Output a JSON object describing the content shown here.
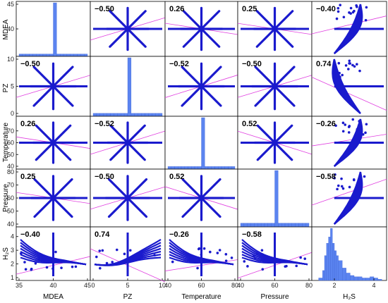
{
  "chart_data": {
    "type": "scatter",
    "title": "",
    "variables": [
      "MDEA",
      "PZ",
      "Temperature",
      "Pressure",
      "H2S"
    ],
    "axis_labels": {
      "x": [
        "MDEA",
        "PZ",
        "Temperature",
        "Pressure",
        "H₂S"
      ],
      "y": [
        "MDEA",
        "PZ",
        "Temperature",
        "Pressure",
        "H₂S"
      ]
    },
    "ranges": {
      "MDEA": [
        35,
        45
      ],
      "PZ": [
        0,
        10
      ],
      "Temperature": [
        40,
        80
      ],
      "Pressure": [
        40,
        80
      ],
      "H2S": [
        1,
        4.5
      ]
    },
    "x_ticks": {
      "MDEA": [
        "35",
        "40",
        "45"
      ],
      "PZ": [
        "0",
        "5",
        "10"
      ],
      "Temperature": [
        "40",
        "60",
        "80"
      ],
      "Pressure": [
        "40",
        "60",
        "80"
      ],
      "H2S": [
        "2",
        "4"
      ]
    },
    "y_ticks": {
      "MDEA": [
        "40",
        "45"
      ],
      "PZ": [
        "0",
        "5",
        "10"
      ],
      "Temperature": [
        "40",
        "50",
        "60",
        "70"
      ],
      "Pressure": [
        "40",
        "50",
        "60",
        "70",
        "80"
      ],
      "H2S": [
        "1",
        "2",
        "3",
        "4"
      ]
    },
    "correlations": [
      [
        null,
        "−0.50",
        "0.26",
        "0.25",
        "−0.40"
      ],
      [
        "−0.50",
        null,
        "−0.52",
        "−0.50",
        "0.74"
      ],
      [
        "0.26",
        "−0.52",
        null,
        "0.52",
        "−0.26"
      ],
      [
        "0.25",
        "−0.50",
        "0.52",
        null,
        "−0.58"
      ],
      [
        "−0.40",
        "0.74",
        "−0.26",
        "−0.58",
        null
      ]
    ],
    "design_centers": {
      "MDEA": 40,
      "PZ": 5,
      "Temperature": 60,
      "Pressure": 60,
      "H2S": 1.9
    },
    "histograms": {
      "MDEA": {
        "bins": [
          35,
          35.5,
          36,
          36.5,
          37,
          37.5,
          38,
          38.5,
          39,
          39.5,
          40,
          40.5,
          41,
          41.5,
          42,
          42.5,
          43,
          43.5,
          44,
          44.5,
          45
        ],
        "counts": [
          2,
          2,
          2,
          2,
          2,
          2,
          2,
          2,
          2,
          2,
          45,
          2,
          2,
          2,
          2,
          2,
          2,
          2,
          2,
          2
        ]
      },
      "PZ": {
        "bins": [
          0,
          0.5,
          1,
          1.5,
          2,
          2.5,
          3,
          3.5,
          4,
          4.5,
          5,
          5.5,
          6,
          6.5,
          7,
          7.5,
          8,
          8.5,
          9,
          9.5,
          10
        ],
        "counts": [
          2,
          2,
          2,
          2,
          2,
          2,
          2,
          2,
          2,
          2,
          40,
          2,
          2,
          2,
          2,
          2,
          2,
          2,
          2,
          2
        ]
      },
      "Temperature": {
        "bins": [
          40,
          42,
          44,
          46,
          48,
          50,
          52,
          54,
          56,
          58,
          60,
          62,
          64,
          66,
          68,
          70,
          72,
          74,
          76,
          78,
          80
        ],
        "counts": [
          2,
          2,
          2,
          2,
          2,
          2,
          2,
          2,
          2,
          2,
          40,
          2,
          2,
          2,
          2,
          2,
          2,
          2,
          2,
          2
        ]
      },
      "Pressure": {
        "bins": [
          40,
          42,
          44,
          46,
          48,
          50,
          52,
          54,
          56,
          58,
          60,
          62,
          64,
          66,
          68,
          70,
          72,
          74,
          76,
          78,
          80
        ],
        "counts": [
          4,
          4,
          4,
          4,
          4,
          4,
          4,
          4,
          4,
          4,
          60,
          4,
          4,
          4,
          4,
          4,
          4,
          4,
          4,
          4
        ]
      },
      "H2S": {
        "bins": [
          1.2,
          1.4,
          1.5,
          1.6,
          1.7,
          1.8,
          1.9,
          2.0,
          2.1,
          2.2,
          2.4,
          2.6,
          2.8,
          3.0,
          3.2,
          3.4,
          3.6,
          3.8,
          4.0,
          4.2,
          4.4
        ],
        "counts": [
          2,
          8,
          20,
          30,
          35,
          42,
          30,
          24,
          20,
          16,
          10,
          6,
          4,
          3,
          3,
          2,
          2,
          3,
          2,
          1
        ]
      }
    },
    "colors": {
      "points": "#1a1acd",
      "histogram": "#5b84f0",
      "fit_line": "#e040e0",
      "axes": "#000000"
    }
  }
}
